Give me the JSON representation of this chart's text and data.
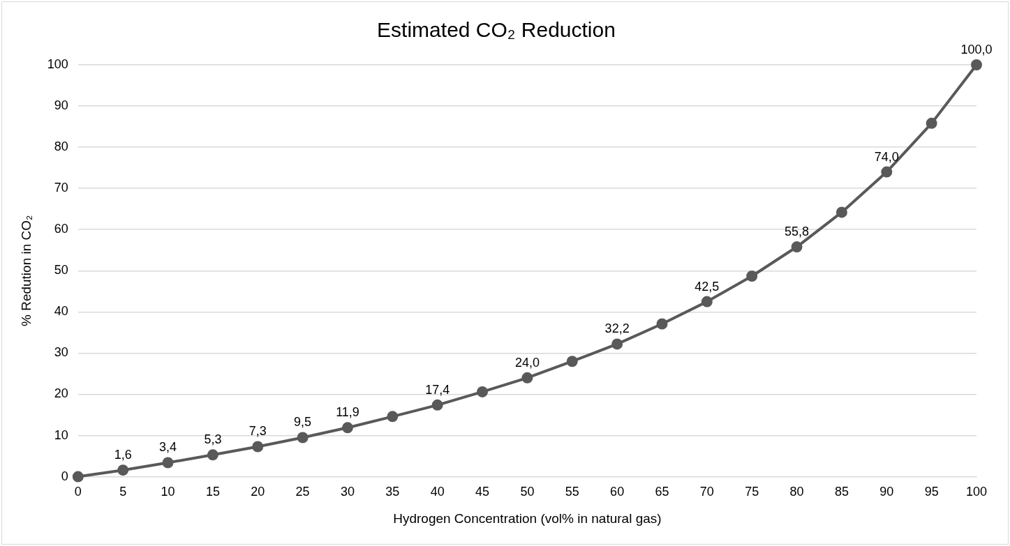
{
  "chart_data": {
    "type": "line",
    "title": "Estimated CO₂ Reduction",
    "xlabel": "Hydrogen Concentration (vol% in natural gas)",
    "ylabel": "% Redution in CO₂",
    "categories": [
      "0",
      "5",
      "10",
      "15",
      "20",
      "25",
      "30",
      "35",
      "40",
      "45",
      "50",
      "55",
      "60",
      "65",
      "70",
      "75",
      "80",
      "85",
      "90",
      "95",
      "100"
    ],
    "series": [
      {
        "color": "#595959",
        "values": [
          0,
          1.6,
          3.4,
          5.3,
          7.3,
          9.5,
          11.9,
          14.6,
          17.4,
          20.6,
          24.0,
          28.0,
          32.2,
          37.1,
          42.5,
          48.7,
          55.8,
          64.2,
          74.0,
          85.8,
          100.0
        ],
        "value_labels": [
          null,
          "1,6",
          "3,4",
          "5,3",
          "7,3",
          "9,5",
          "11,9",
          null,
          "17,4",
          null,
          "24,0",
          null,
          "32,2",
          null,
          "42,5",
          null,
          "55,8",
          null,
          "74,0",
          null,
          "100,0"
        ]
      }
    ],
    "ylim": [
      0,
      100
    ],
    "yticks": [
      0,
      10,
      20,
      30,
      40,
      50,
      60,
      70,
      80,
      90,
      100
    ],
    "grid": "y",
    "legend": false,
    "marker": "circle",
    "line_style": "solid"
  }
}
